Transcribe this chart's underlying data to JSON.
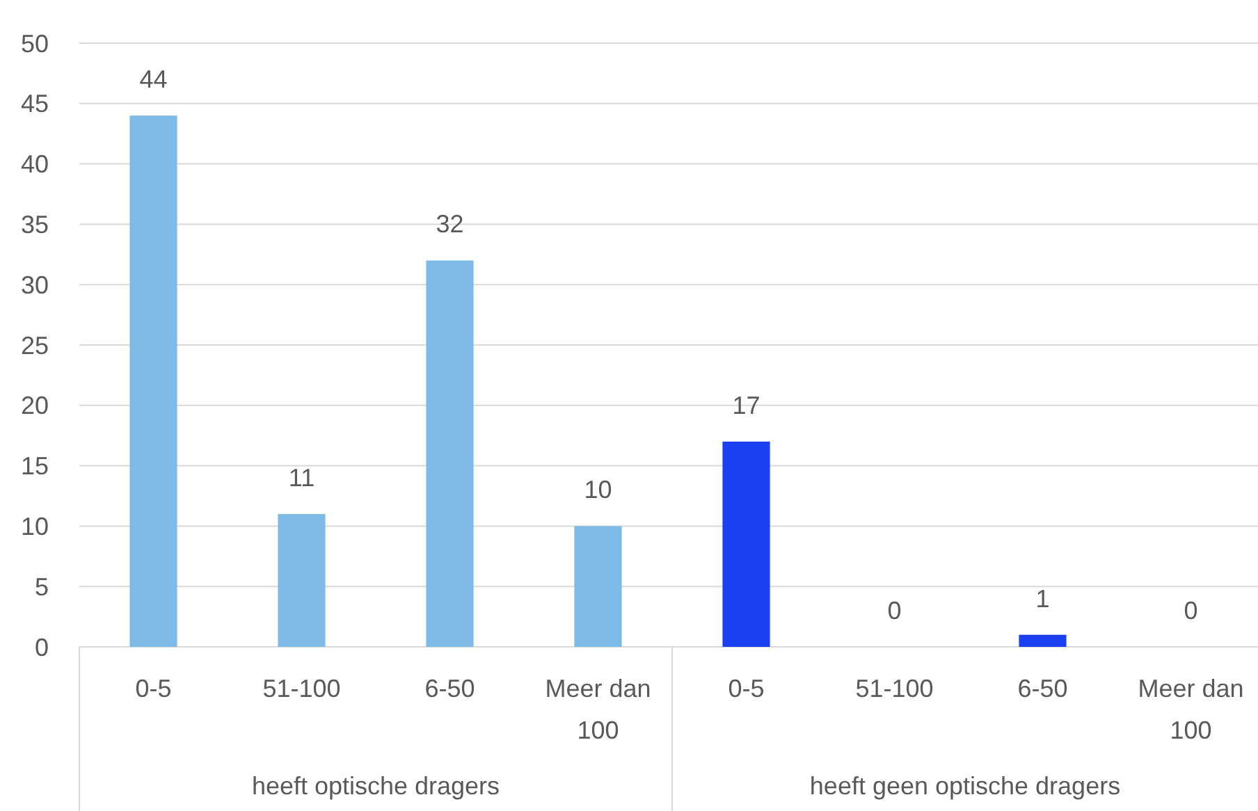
{
  "chart_data": {
    "type": "bar",
    "categories": [
      "0-5",
      "51-100",
      "6-50",
      "Meer dan 100",
      "0-5",
      "51-100",
      "6-50",
      "Meer dan 100"
    ],
    "series": [
      {
        "color": "#7ebae6",
        "values": [
          44,
          11,
          32,
          10,
          null,
          null,
          null,
          null
        ]
      },
      {
        "color": "#1a40f2",
        "values": [
          null,
          null,
          null,
          null,
          17,
          0,
          1,
          0
        ]
      }
    ],
    "annotations": [
      "heeft optische dragers",
      "heeft geen optische dragers"
    ],
    "ylim": [
      0,
      50
    ],
    "yticks": [
      0,
      5,
      10,
      15,
      20,
      25,
      30,
      35,
      40,
      45,
      50
    ],
    "grid": "y",
    "data_labels": true
  }
}
